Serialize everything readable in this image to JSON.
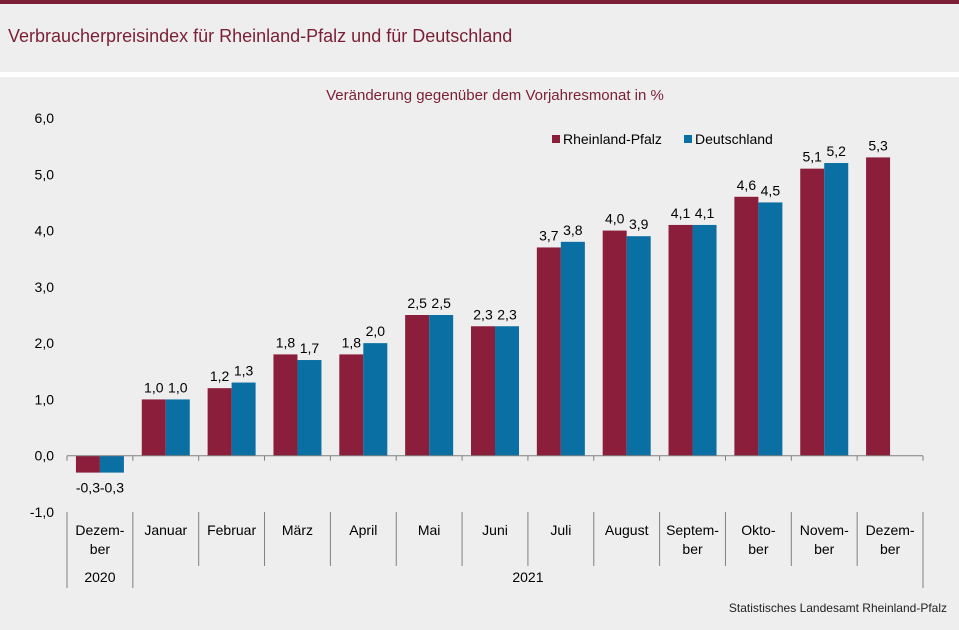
{
  "title": "Verbraucherpreisindex für Rheinland-Pfalz und für Deutschland",
  "source": "Statistisches Landesamt Rheinland-Pfalz",
  "colors": {
    "rlp": "#8b1e3a",
    "de": "#0a6fa3",
    "title": "#7a1f35"
  },
  "chart_data": {
    "type": "bar",
    "subtitle": "Veränderung gegenüber dem Vorjahresmonat in %",
    "ylim": [
      -1.0,
      6.0
    ],
    "yticks": [
      "6,0",
      "5,0",
      "4,0",
      "3,0",
      "2,0",
      "1,0",
      "0,0",
      "-1,0"
    ],
    "categories": [
      [
        "Dezem-",
        "ber"
      ],
      [
        "Januar"
      ],
      [
        "Februar"
      ],
      [
        "März"
      ],
      [
        "April"
      ],
      [
        "Mai"
      ],
      [
        "Juni"
      ],
      [
        "Juli"
      ],
      [
        "August"
      ],
      [
        "Septem-",
        "ber"
      ],
      [
        "Okto-",
        "ber"
      ],
      [
        "Novem-",
        "ber"
      ],
      [
        "Dezem-",
        "ber"
      ]
    ],
    "years": [
      {
        "label": "2020",
        "from": 0,
        "to": 0
      },
      {
        "label": "2021",
        "from": 1,
        "to": 12
      }
    ],
    "legend_position": "top-right",
    "grid": false,
    "series": [
      {
        "name": "Rheinland-Pfalz",
        "values": [
          -0.3,
          1.0,
          1.2,
          1.8,
          1.8,
          2.5,
          2.3,
          3.7,
          4.0,
          4.1,
          4.6,
          5.1,
          5.3
        ],
        "labels": [
          "-0,3",
          "1,0",
          "1,2",
          "1,8",
          "1,8",
          "2,5",
          "2,3",
          "3,7",
          "4,0",
          "4,1",
          "4,6",
          "5,1",
          "5,3"
        ]
      },
      {
        "name": "Deutschland",
        "values": [
          -0.3,
          1.0,
          1.3,
          1.7,
          2.0,
          2.5,
          2.3,
          3.8,
          3.9,
          4.1,
          4.5,
          5.2,
          null
        ],
        "labels": [
          "-0,3",
          "1,0",
          "1,3",
          "1,7",
          "2,0",
          "2,5",
          "2,3",
          "3,8",
          "3,9",
          "4,1",
          "4,5",
          "5,2",
          ""
        ]
      }
    ]
  }
}
